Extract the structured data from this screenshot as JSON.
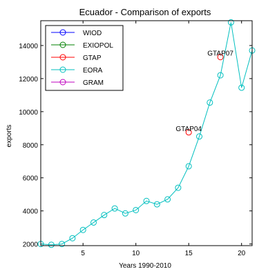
{
  "chart_data": {
    "type": "line",
    "title": "Ecuador - Comparison of exports",
    "xlabel": "Years 1990-2010",
    "ylabel": "exports",
    "xlim": [
      1,
      21
    ],
    "ylim": [
      1900,
      15500
    ],
    "xticks": [
      5,
      10,
      15,
      20
    ],
    "yticks": [
      2000,
      4000,
      6000,
      8000,
      10000,
      12000,
      14000
    ],
    "grid": false,
    "legend_position": "top-left",
    "series": [
      {
        "name": "WIOD",
        "color": "#0000ff",
        "x": [],
        "values": []
      },
      {
        "name": "EXIOPOL",
        "color": "#008000",
        "x": [],
        "values": []
      },
      {
        "name": "GTAP",
        "color": "#ff0000",
        "x": [
          15,
          18
        ],
        "values": [
          8750,
          13300
        ]
      },
      {
        "name": "EORA",
        "color": "#00bfbf",
        "x": [
          1,
          2,
          3,
          4,
          5,
          6,
          7,
          8,
          9,
          10,
          11,
          12,
          13,
          14,
          15,
          16,
          17,
          18,
          19,
          20,
          21
        ],
        "values": [
          2000,
          1950,
          2000,
          2350,
          2850,
          3300,
          3750,
          4150,
          3850,
          4050,
          4600,
          4400,
          4700,
          5400,
          6700,
          8500,
          10550,
          12200,
          15400,
          11450,
          13700
        ]
      },
      {
        "name": "GRAM",
        "color": "#bf00bf",
        "x": [],
        "values": []
      }
    ],
    "annotations": [
      {
        "text": "GTAP04",
        "x": 15,
        "y": 8750
      },
      {
        "text": "GTAP07",
        "x": 18,
        "y": 13300
      }
    ]
  }
}
